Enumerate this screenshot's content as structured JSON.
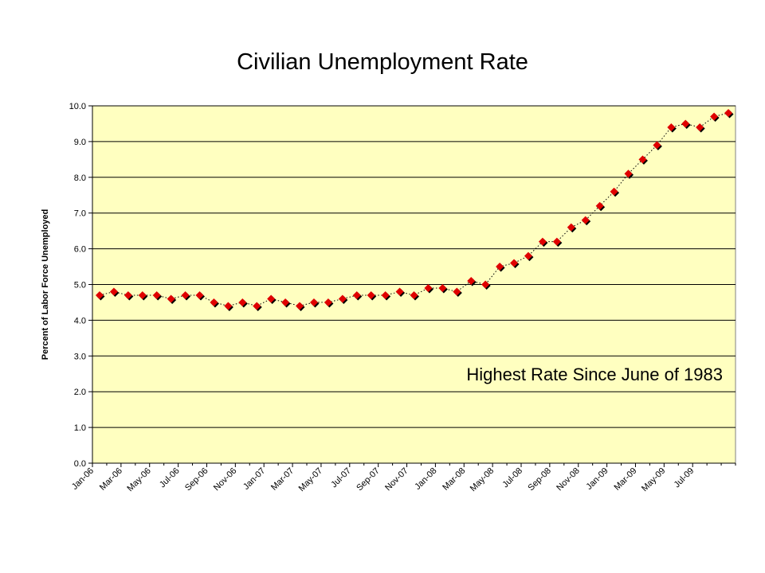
{
  "chart_data": {
    "type": "line",
    "title": "Civilian Unemployment Rate",
    "xlabel": "",
    "ylabel": "Percent of Labor Force Unemployed",
    "ylim": [
      0,
      10
    ],
    "yticks": [
      "0.0",
      "1.0",
      "2.0",
      "3.0",
      "4.0",
      "5.0",
      "6.0",
      "7.0",
      "8.0",
      "9.0",
      "10.0"
    ],
    "x_tick_labels": [
      "Jan-06",
      "Mar-06",
      "May-06",
      "Jul-06",
      "Sep-06",
      "Nov-06",
      "Jan-07",
      "Mar-07",
      "May-07",
      "Jul-07",
      "Sep-07",
      "Nov-07",
      "Jan-08",
      "Mar-08",
      "May-08",
      "Jul-08",
      "Sep-08",
      "Nov-08",
      "Jan-09",
      "Mar-09",
      "May-09",
      "Jul-09"
    ],
    "x": [
      "Jan-06",
      "Feb-06",
      "Mar-06",
      "Apr-06",
      "May-06",
      "Jun-06",
      "Jul-06",
      "Aug-06",
      "Sep-06",
      "Oct-06",
      "Nov-06",
      "Dec-06",
      "Jan-07",
      "Feb-07",
      "Mar-07",
      "Apr-07",
      "May-07",
      "Jun-07",
      "Jul-07",
      "Aug-07",
      "Sep-07",
      "Oct-07",
      "Nov-07",
      "Dec-07",
      "Jan-08",
      "Feb-08",
      "Mar-08",
      "Apr-08",
      "May-08",
      "Jun-08",
      "Jul-08",
      "Aug-08",
      "Sep-08",
      "Oct-08",
      "Nov-08",
      "Dec-08",
      "Jan-09",
      "Feb-09",
      "Mar-09",
      "Apr-09",
      "May-09",
      "Jun-09",
      "Jul-09",
      "Aug-09",
      "Sep-09"
    ],
    "series": [
      {
        "values": [
          4.7,
          4.8,
          4.7,
          4.7,
          4.7,
          4.6,
          4.7,
          4.7,
          4.5,
          4.4,
          4.5,
          4.4,
          4.6,
          4.5,
          4.4,
          4.5,
          4.5,
          4.6,
          4.7,
          4.7,
          4.7,
          4.8,
          4.7,
          4.9,
          4.9,
          4.8,
          5.1,
          5.0,
          5.5,
          5.6,
          5.8,
          6.2,
          6.2,
          6.6,
          6.8,
          7.2,
          7.6,
          8.1,
          8.5,
          8.9,
          9.4,
          9.5,
          9.4,
          9.7,
          9.8
        ]
      }
    ],
    "annotation": "Highest Rate Since June of 1983",
    "grid": true,
    "colors": {
      "plot_background": "#ffffc0",
      "gridline": "#000000",
      "marker_fill": "#e00000",
      "marker_shadow": "#000000",
      "line": "#000000"
    }
  }
}
